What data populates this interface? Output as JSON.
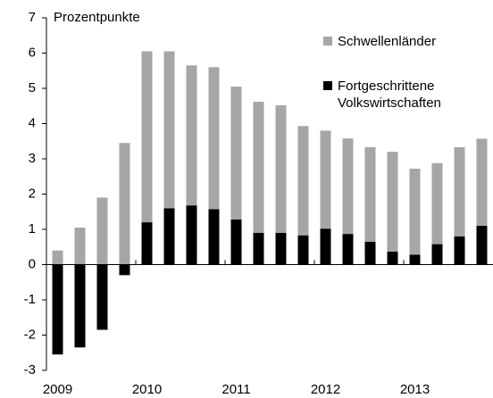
{
  "chart_data": {
    "type": "stacked_bar",
    "y_label": "Prozentpunkte",
    "categories": [
      "2009",
      null,
      null,
      null,
      "2010",
      null,
      null,
      null,
      "2011",
      null,
      null,
      null,
      "2012",
      null,
      null,
      null,
      "2013",
      null,
      null,
      null
    ],
    "series": [
      {
        "name": "Fortgeschrittene Volkswirtschaften",
        "color": "#000000",
        "values": [
          -2.55,
          -2.35,
          -1.85,
          -0.3,
          1.2,
          1.6,
          1.68,
          1.57,
          1.28,
          0.9,
          0.9,
          0.83,
          1.02,
          0.87,
          0.65,
          0.37,
          0.28,
          0.58,
          0.8,
          1.1
        ]
      },
      {
        "name": "Schwellenländer",
        "color": "#a6a6a6",
        "values": [
          0.4,
          1.05,
          1.9,
          3.45,
          4.85,
          4.45,
          3.97,
          4.03,
          3.77,
          3.72,
          3.62,
          3.1,
          2.78,
          2.71,
          2.68,
          2.83,
          2.44,
          2.3,
          2.53,
          2.47
        ]
      }
    ],
    "ylim": [
      -3,
      7
    ],
    "yticks": [
      -3,
      -2,
      -1,
      0,
      1,
      2,
      3,
      4,
      5,
      6,
      7
    ]
  }
}
